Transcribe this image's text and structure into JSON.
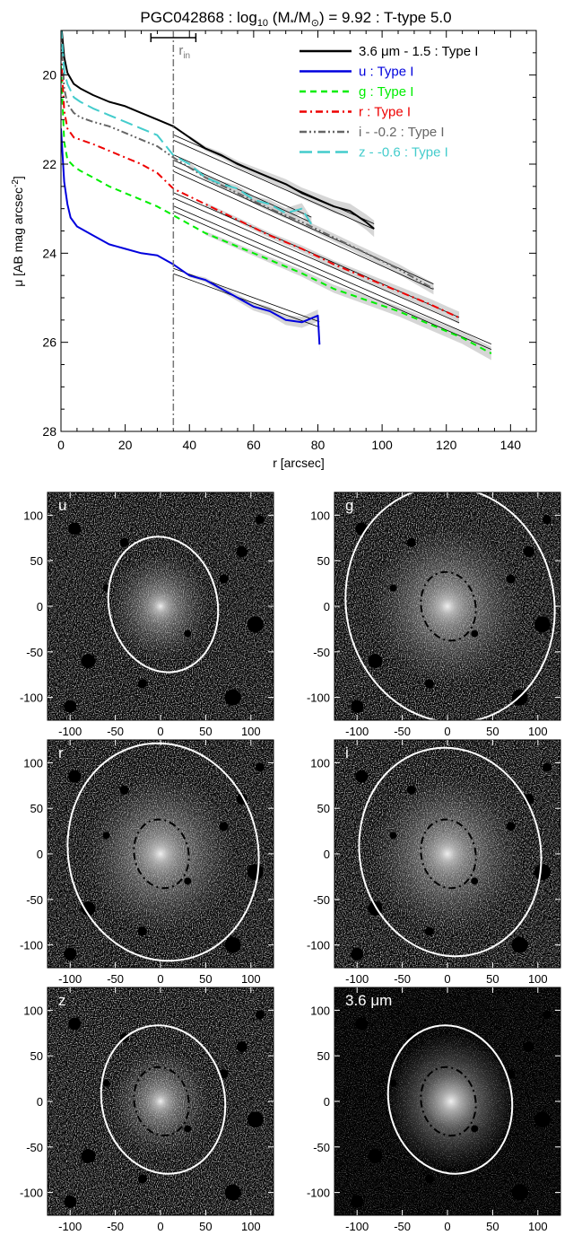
{
  "chart_data": [
    {
      "type": "line",
      "title_parts": {
        "prefix": "PGC042868 : log",
        "sub": "10",
        "open": " (M",
        "star": "*",
        "slash": "/M",
        "sun": "⊙",
        "rest": ") = 9.92 : T-type 5.0"
      },
      "xlabel": "r [arcsec]",
      "ylabel_parts": {
        "main": "μ [AB mag arcsec",
        "sup": "-2",
        "close": "]"
      },
      "xlim": [
        0,
        148
      ],
      "ylim": [
        28,
        19
      ],
      "y_inverted": true,
      "xticks": [
        "0",
        "20",
        "40",
        "60",
        "80",
        "100",
        "120",
        "140"
      ],
      "xtick_values": [
        0,
        20,
        40,
        60,
        80,
        100,
        120,
        140
      ],
      "yticks": [
        "20",
        "22",
        "24",
        "26",
        "28"
      ],
      "ytick_values": [
        20,
        22,
        24,
        26,
        28
      ],
      "r_in": {
        "label_main": "r",
        "label_sub": "in",
        "value": 35,
        "bar": [
          28,
          42
        ]
      },
      "legend_position": "top-right",
      "series": [
        {
          "name": "3.6 μm - 1.5 : Type I",
          "color": "#000000",
          "dash": "solid",
          "x": [
            0,
            1,
            2,
            4,
            6,
            10,
            15,
            20,
            25,
            30,
            35,
            40,
            45,
            50,
            55,
            60,
            65,
            70,
            75,
            80,
            85,
            90,
            95,
            97.5
          ],
          "y": [
            18.8,
            19.6,
            19.95,
            20.2,
            20.3,
            20.45,
            20.6,
            20.7,
            20.85,
            21.0,
            21.15,
            21.4,
            21.65,
            21.8,
            22.0,
            22.15,
            22.3,
            22.45,
            22.65,
            22.8,
            22.95,
            23.05,
            23.3,
            23.45
          ],
          "fit": {
            "x": [
              35,
              97.5
            ],
            "y": [
              21.4,
              23.4
            ]
          }
        },
        {
          "name": "u : Type I",
          "color": "#0000dd",
          "dash": "solid",
          "x": [
            0,
            1,
            2,
            3,
            5,
            10,
            15,
            20,
            25,
            30,
            35,
            40,
            45,
            50,
            55,
            60,
            65,
            70,
            75,
            80,
            80.5
          ],
          "y": [
            21.2,
            22.4,
            22.9,
            23.2,
            23.4,
            23.6,
            23.8,
            23.9,
            24.0,
            24.05,
            24.25,
            24.5,
            24.6,
            24.8,
            25.0,
            25.2,
            25.3,
            25.5,
            25.55,
            25.4,
            26.05
          ],
          "fit": {
            "x": [
              35,
              80.5
            ],
            "y": [
              24.4,
              25.6
            ]
          }
        },
        {
          "name": "g : Type I",
          "color": "#00ee00",
          "dash": "dashed",
          "x": [
            0,
            1,
            2,
            4,
            6,
            10,
            15,
            20,
            25,
            30,
            35,
            45,
            55,
            65,
            75,
            85,
            95,
            105,
            115,
            125,
            134
          ],
          "y": [
            19.8,
            21.5,
            21.9,
            22.05,
            22.15,
            22.3,
            22.5,
            22.65,
            22.8,
            22.95,
            23.15,
            23.55,
            23.85,
            24.15,
            24.45,
            24.8,
            25.05,
            25.3,
            25.6,
            25.9,
            26.25
          ],
          "fit": {
            "x": [
              35,
              134
            ],
            "y": [
              23.0,
              26.1
            ]
          }
        },
        {
          "name": "r : Type I",
          "color": "#ee0000",
          "dash": "dashdot",
          "x": [
            0,
            1,
            2,
            4,
            6,
            10,
            15,
            20,
            25,
            30,
            35,
            45,
            55,
            65,
            75,
            85,
            95,
            105,
            115,
            124
          ],
          "y": [
            19.5,
            20.8,
            21.2,
            21.4,
            21.45,
            21.55,
            21.7,
            21.85,
            22.0,
            22.2,
            22.55,
            22.9,
            23.25,
            23.6,
            23.9,
            24.25,
            24.55,
            24.85,
            25.15,
            25.45
          ],
          "fit": {
            "x": [
              35,
              124
            ],
            "y": [
              22.7,
              25.5
            ]
          }
        },
        {
          "name": "i - -0.2 : Type I",
          "color": "#666666",
          "dash": "dashdotdot",
          "x": [
            0,
            1,
            2,
            4,
            6,
            10,
            15,
            20,
            25,
            30,
            35,
            45,
            55,
            65,
            75,
            85,
            95,
            105,
            116
          ],
          "y": [
            19.1,
            20.3,
            20.65,
            20.85,
            20.95,
            21.05,
            21.15,
            21.3,
            21.45,
            21.6,
            21.85,
            22.3,
            22.65,
            23.0,
            23.3,
            23.65,
            24.0,
            24.35,
            24.8
          ],
          "fit": {
            "x": [
              35,
              116
            ],
            "y": [
              22.1,
              24.75
            ]
          }
        },
        {
          "name": "z - -0.6 : Type I",
          "color": "#44cccc",
          "dash": "longdash",
          "x": [
            0,
            1,
            2,
            4,
            6,
            10,
            15,
            20,
            25,
            30,
            35,
            40,
            45,
            50,
            55,
            60,
            65,
            70,
            75,
            78
          ],
          "y": [
            18.9,
            19.9,
            20.2,
            20.5,
            20.6,
            20.75,
            20.9,
            21.05,
            21.2,
            21.35,
            21.8,
            22.0,
            22.3,
            22.45,
            22.55,
            22.8,
            22.9,
            23.1,
            23.0,
            23.35
          ],
          "fit": {
            "x": [
              35,
              78
            ],
            "y": [
              21.85,
              23.25
            ]
          }
        }
      ]
    }
  ],
  "panels": [
    {
      "label": "u",
      "xticks": [
        "-100",
        "-50",
        "0",
        "50",
        "100"
      ],
      "yticks": [
        "100",
        "50",
        "0",
        "-50",
        "-100"
      ],
      "outer_r": [
        60,
        75
      ],
      "inner": false,
      "bg": "noisy"
    },
    {
      "label": "g",
      "xticks": [
        "-100",
        "-50",
        "0",
        "50",
        "100"
      ],
      "yticks": [
        "100",
        "50",
        "0",
        "-50",
        "-100"
      ],
      "outer_r": [
        115,
        130
      ],
      "inner": true,
      "bg": "noisy"
    },
    {
      "label": "r",
      "xticks": [
        "-100",
        "-50",
        "0",
        "50",
        "100"
      ],
      "yticks": [
        "100",
        "50",
        "0",
        "-50",
        "-100"
      ],
      "outer_r": [
        105,
        120
      ],
      "inner": true,
      "bg": "noisy"
    },
    {
      "label": "i",
      "xticks": [
        "-100",
        "-50",
        "0",
        "50",
        "100"
      ],
      "yticks": [
        "100",
        "50",
        "0",
        "-50",
        "-100"
      ],
      "outer_r": [
        100,
        115
      ],
      "inner": true,
      "bg": "noisy"
    },
    {
      "label": "z",
      "xticks": [
        "-100",
        "-50",
        "0",
        "50",
        "100"
      ],
      "yticks": [
        "100",
        "50",
        "0",
        "-50",
        "-100"
      ],
      "outer_r": [
        68,
        82
      ],
      "inner": true,
      "bg": "noisy"
    },
    {
      "label": "3.6 μm",
      "xticks": [
        "-100",
        "-50",
        "0",
        "50",
        "100"
      ],
      "yticks": [
        "100",
        "50",
        "0",
        "-50",
        "-100"
      ],
      "outer_r": [
        68,
        82
      ],
      "inner": true,
      "bg": "dark"
    }
  ],
  "colors": {
    "axis": "#000000",
    "fit": "#000000",
    "band": "#c8c8c8",
    "rin_line": "#777777",
    "ellipse": "#ffffff"
  }
}
